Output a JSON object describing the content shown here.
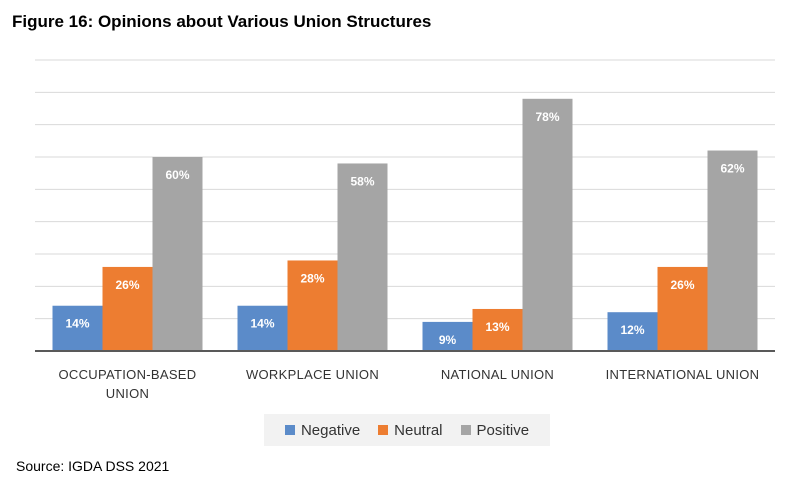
{
  "figure_title": "Figure 16:  Opinions about Various Union Structures",
  "source": "Source: IGDA DSS 2021",
  "colors": {
    "negative": "#5b8bc9",
    "neutral": "#ed7d31",
    "positive": "#a5a5a5",
    "gridline": "#d9d9d9",
    "axis": "#595959"
  },
  "chart_data": {
    "type": "bar",
    "categories": [
      [
        "OCCUPATION-BASED",
        "UNION"
      ],
      [
        "WORKPLACE UNION"
      ],
      [
        "NATIONAL UNION"
      ],
      [
        "INTERNATIONAL UNION"
      ]
    ],
    "series": [
      {
        "name": "Negative",
        "values": [
          14,
          14,
          9,
          12
        ],
        "labels": [
          "14%",
          "14%",
          "9%",
          "12%"
        ],
        "color": "#5b8bc9"
      },
      {
        "name": "Neutral",
        "values": [
          26,
          28,
          13,
          26
        ],
        "labels": [
          "26%",
          "28%",
          "13%",
          "26%"
        ],
        "color": "#ed7d31"
      },
      {
        "name": "Positive",
        "values": [
          60,
          58,
          78,
          62
        ],
        "labels": [
          "60%",
          "58%",
          "78%",
          "62%"
        ],
        "color": "#a5a5a5"
      }
    ],
    "ylim": [
      0,
      90
    ],
    "grid": true,
    "legend_position": "bottom"
  }
}
